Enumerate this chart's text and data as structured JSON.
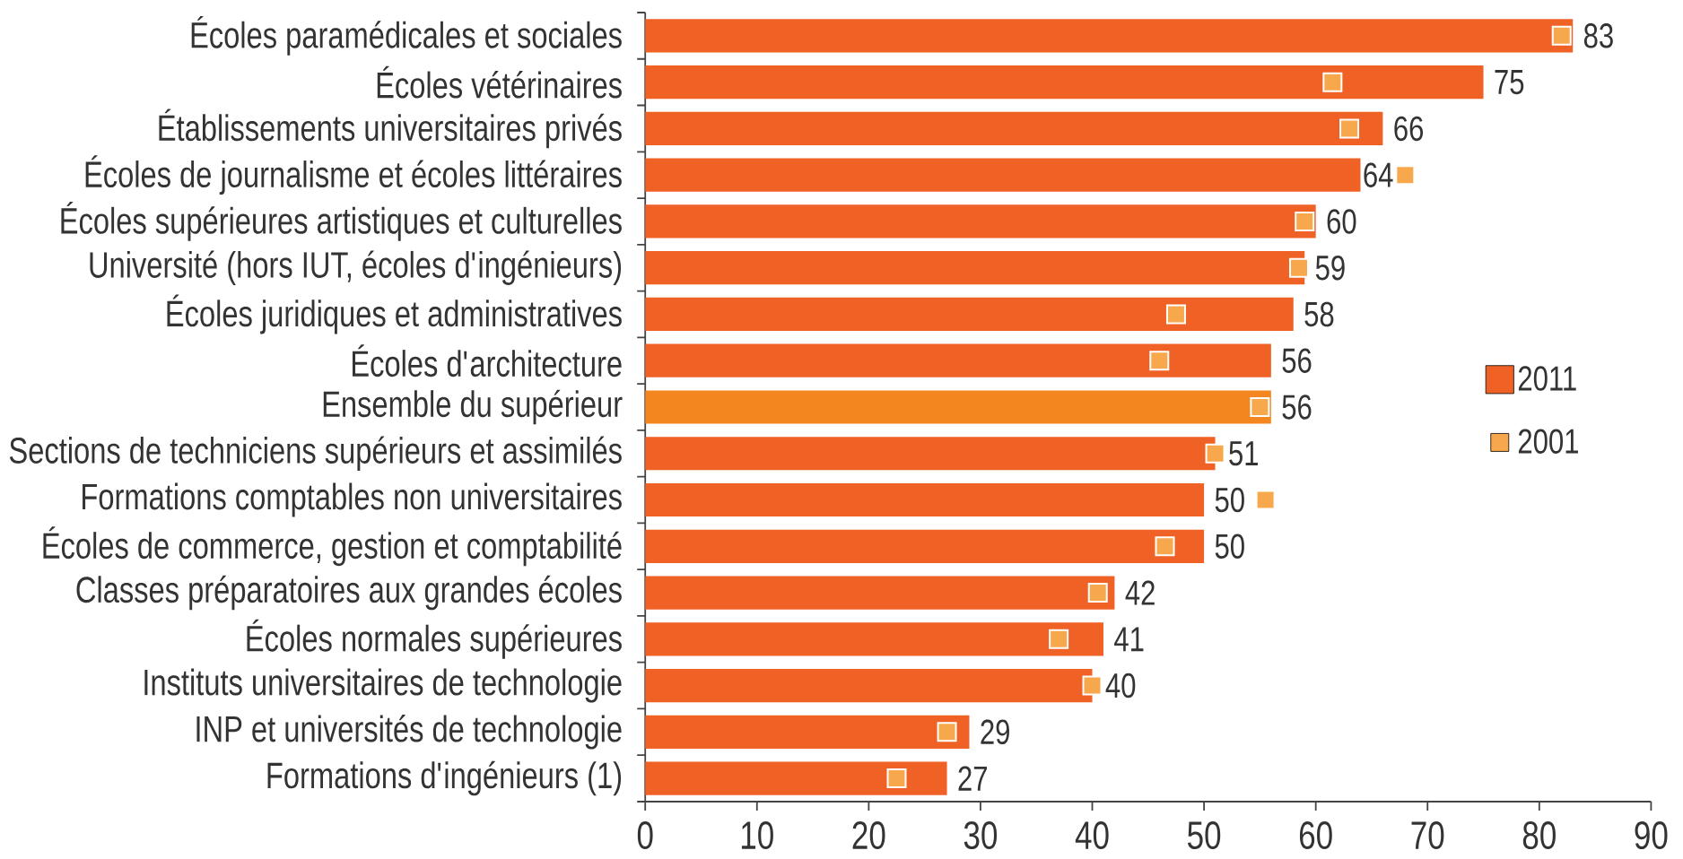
{
  "chart_data": {
    "type": "bar",
    "orientation": "horizontal",
    "categories": [
      "Écoles paramédicales et sociales",
      "Écoles vétérinaires",
      "Établissements universitaires privés",
      "Écoles de journalisme et écoles littéraires",
      "Écoles supérieures artistiques et culturelles",
      "Université (hors IUT, écoles d'ingénieurs)",
      "Écoles juridiques et administratives",
      "Écoles d'architecture",
      "Ensemble du supérieur",
      "Sections de techniciens supérieurs et assimilés",
      "Formations comptables non universitaires",
      "Écoles de commerce, gestion et comptabilité",
      "Classes préparatoires aux grandes écoles",
      "Écoles normales supérieures",
      "Instituts universitaires de technologie",
      "INP et universités de technologie",
      "Formations d'ingénieurs (1)"
    ],
    "series": [
      {
        "name": "2011",
        "color": "#f06126",
        "colors": [
          "#f06126",
          "#f06126",
          "#f06126",
          "#f06126",
          "#f06126",
          "#f06126",
          "#f06126",
          "#f06126",
          "#f3861f",
          "#f06126",
          "#f06126",
          "#f06126",
          "#f06126",
          "#f06126",
          "#f06126",
          "#f06126",
          "#f06126"
        ],
        "values": [
          83,
          75,
          66,
          64,
          60,
          59,
          58,
          56,
          56,
          51,
          50,
          50,
          42,
          41,
          40,
          29,
          27
        ],
        "data_labels": true
      },
      {
        "name": "2001",
        "type": "scatter",
        "marker": "square",
        "color": "#f8a84c",
        "values": [
          82,
          61.5,
          63,
          68,
          59,
          58.5,
          47.5,
          46,
          55,
          51,
          55.5,
          46.5,
          40.5,
          37,
          40,
          27,
          22.5
        ]
      }
    ],
    "xlim": [
      0,
      90
    ],
    "xticks": [
      0,
      10,
      20,
      30,
      40,
      50,
      60,
      70,
      80,
      90
    ],
    "legend": "right"
  }
}
